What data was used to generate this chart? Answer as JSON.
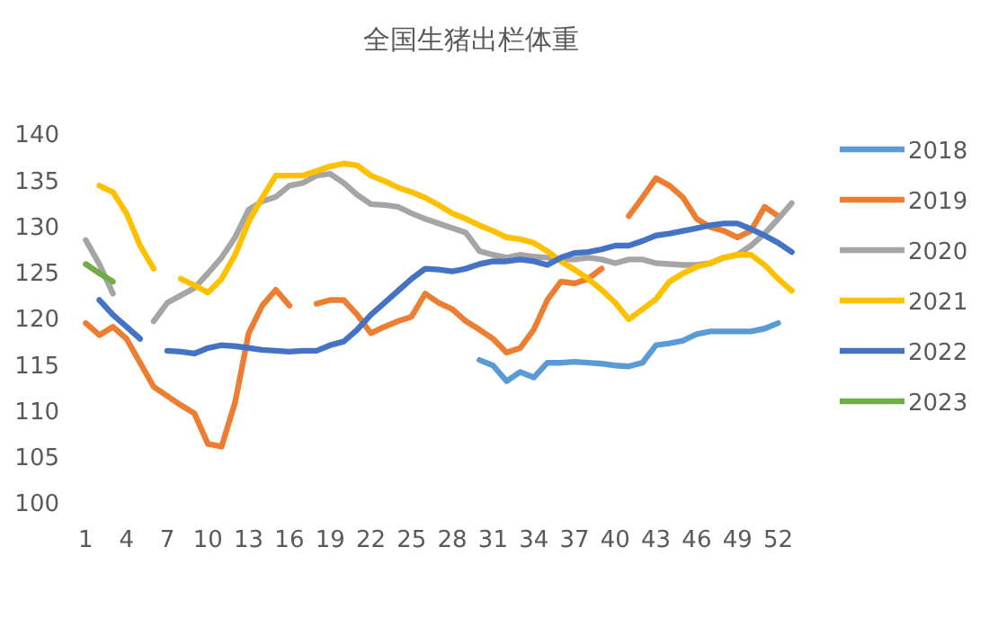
{
  "chart_data": {
    "type": "line",
    "title": "全国生猪出栏体重",
    "categories": [
      "1",
      null,
      null,
      "4",
      null,
      null,
      "7",
      null,
      null,
      "10",
      null,
      null,
      "13",
      null,
      null,
      "16",
      null,
      null,
      "19",
      null,
      null,
      "22",
      null,
      null,
      "25",
      null,
      null,
      "28",
      null,
      null,
      "31",
      null,
      null,
      "34",
      null,
      null,
      "37",
      null,
      null,
      "40",
      null,
      null,
      "43",
      null,
      null,
      "46",
      null,
      null,
      "49",
      null,
      null,
      "52",
      null
    ],
    "ylim": [
      100,
      140
    ],
    "yticks": [
      100,
      105,
      110,
      115,
      120,
      125,
      130,
      135,
      140
    ],
    "grid": false,
    "legend": "right",
    "marker": "none",
    "line_style": "solid",
    "series": [
      {
        "name": "2018",
        "color": "#5b9bd5",
        "values": [
          null,
          null,
          null,
          null,
          null,
          null,
          null,
          null,
          null,
          null,
          null,
          null,
          null,
          null,
          null,
          null,
          null,
          null,
          null,
          null,
          null,
          null,
          null,
          null,
          null,
          null,
          null,
          null,
          null,
          115.6,
          115,
          113.3,
          114.3,
          113.7,
          115.3,
          115.3,
          115.4,
          115.3,
          115.2,
          115,
          114.9,
          115.3,
          117.2,
          117.4,
          117.7,
          118.4,
          118.7,
          118.7,
          118.7,
          118.7,
          119,
          119.6,
          null
        ]
      },
      {
        "name": "2019",
        "color": "#ed7d31",
        "values": [
          119.6,
          118.3,
          119.2,
          117.9,
          115.3,
          112.7,
          111.7,
          110.7,
          109.8,
          106.5,
          106.2,
          111,
          118.5,
          121.5,
          123.2,
          121.5,
          null,
          121.7,
          122.1,
          122.1,
          120.5,
          118.5,
          119.2,
          119.8,
          120.3,
          122.8,
          121.8,
          121.1,
          119.8,
          118.9,
          117.9,
          116.4,
          116.9,
          118.9,
          122.1,
          124.1,
          123.9,
          124.4,
          125.5,
          null,
          131.2,
          133.2,
          135.3,
          134.5,
          133.2,
          130.9,
          130,
          129.6,
          128.9,
          129.6,
          132.2,
          131.2,
          null
        ]
      },
      {
        "name": "2020",
        "color": "#a5a5a5",
        "values": [
          128.6,
          126,
          122.8,
          null,
          null,
          119.8,
          121.8,
          122.6,
          123.4,
          125,
          126.7,
          128.9,
          131.9,
          132.8,
          133.3,
          134.5,
          134.8,
          135.6,
          135.8,
          134.8,
          133.5,
          132.5,
          132.4,
          132.2,
          131.5,
          130.9,
          130.4,
          129.9,
          129.4,
          127.4,
          127,
          126.7,
          127,
          126.8,
          126.7,
          126.5,
          126.5,
          126.7,
          126.5,
          126.1,
          126.5,
          126.5,
          126.1,
          126,
          125.9,
          125.9,
          126.1,
          126.7,
          127,
          128,
          129.3,
          130.9,
          132.6
        ]
      },
      {
        "name": "2021",
        "color": "#ffc000",
        "values": [
          null,
          134.5,
          133.8,
          131.5,
          128,
          125.5,
          null,
          124.4,
          123.7,
          122.9,
          124.4,
          127,
          130.6,
          133.2,
          135.6,
          135.6,
          135.6,
          136.1,
          136.6,
          136.9,
          136.7,
          135.6,
          135,
          134.3,
          133.8,
          133.2,
          132.4,
          131.5,
          130.9,
          130.2,
          129.6,
          128.9,
          128.7,
          128.3,
          127.4,
          126.3,
          125.4,
          124.4,
          123.2,
          121.8,
          120,
          121.1,
          122.2,
          124.1,
          125,
          125.7,
          126.1,
          126.7,
          127,
          127,
          125.9,
          124.4,
          123.1
        ]
      },
      {
        "name": "2022",
        "color": "#4472c4",
        "values": [
          null,
          122.1,
          120.5,
          119.2,
          117.9,
          null,
          116.6,
          116.5,
          116.3,
          116.9,
          117.2,
          117.1,
          116.9,
          116.7,
          116.6,
          116.5,
          116.6,
          116.6,
          117.2,
          117.6,
          118.9,
          120.5,
          121.8,
          123.1,
          124.4,
          125.5,
          125.4,
          125.2,
          125.5,
          126,
          126.3,
          126.3,
          126.5,
          126.3,
          125.9,
          126.7,
          127.2,
          127.3,
          127.6,
          128,
          128,
          128.5,
          129.1,
          129.3,
          129.6,
          129.9,
          130.2,
          130.4,
          130.4,
          129.8,
          129.1,
          128.3,
          127.3
        ]
      },
      {
        "name": "2023",
        "color": "#70ad47",
        "values": [
          126,
          125,
          124.1,
          null,
          null,
          null,
          null,
          null,
          null,
          null,
          null,
          null,
          null,
          null,
          null,
          null,
          null,
          null,
          null,
          null,
          null,
          null,
          null,
          null,
          null,
          null,
          null,
          null,
          null,
          null,
          null,
          null,
          null,
          null,
          null,
          null,
          null,
          null,
          null,
          null,
          null,
          null,
          null,
          null,
          null,
          null,
          null,
          null,
          null,
          null,
          null,
          null,
          null
        ]
      }
    ]
  }
}
